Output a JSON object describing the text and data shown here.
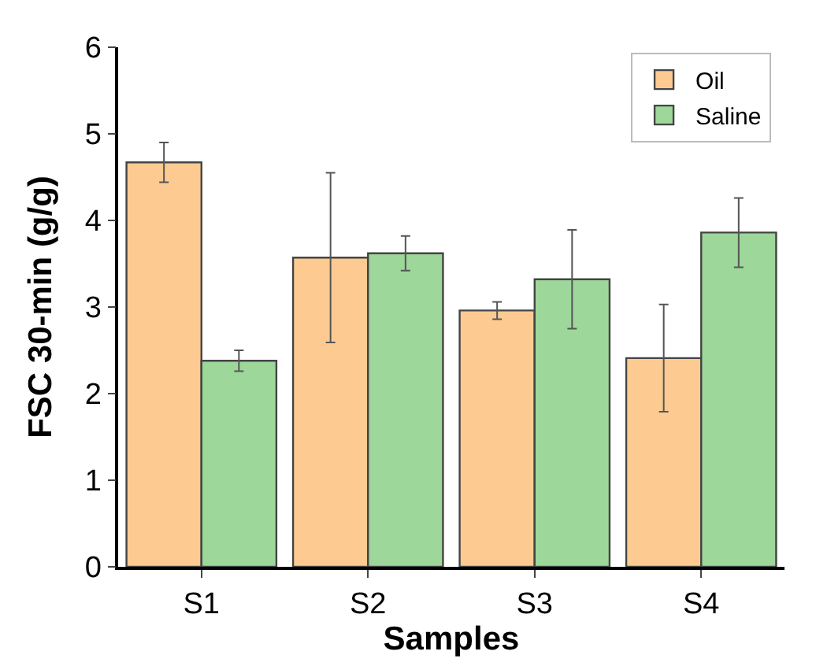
{
  "chart_data": {
    "type": "bar",
    "xlabel": "Samples",
    "ylabel": "FSC 30-min (g/g)",
    "categories": [
      "S1",
      "S2",
      "S3",
      "S4"
    ],
    "series": [
      {
        "name": "Oil",
        "color": "#fdcb92",
        "values": [
          4.67,
          3.57,
          2.96,
          2.41
        ],
        "errors": [
          0.23,
          0.98,
          0.1,
          0.62
        ]
      },
      {
        "name": "Saline",
        "color": "#9dd79a",
        "values": [
          2.38,
          3.62,
          3.32,
          3.86
        ],
        "errors": [
          0.12,
          0.2,
          0.57,
          0.4
        ]
      }
    ],
    "ylim": [
      0,
      6
    ],
    "yticks": [
      0,
      1,
      2,
      3,
      4,
      5,
      6
    ],
    "legend": "top right"
  }
}
